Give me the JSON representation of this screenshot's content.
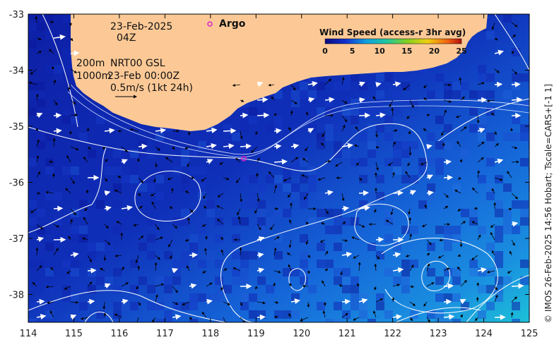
{
  "map": {
    "annotations": {
      "date": "23-Feb-2025",
      "hour": "04Z",
      "depth_200": "200m",
      "product": "NRT00 GSL",
      "depth_1000": "1000m",
      "datetime": "23-Feb 00:00Z",
      "scale_arrow": "0.5m/s (1kt 24h)"
    },
    "argo_label": "Argo",
    "legend": {
      "title": "Wind Speed (access-r 3hr avg)",
      "ticks": [
        "0",
        "5",
        "10",
        "15",
        "20",
        "25"
      ]
    },
    "x_ticks": [
      "114",
      "115",
      "116",
      "117",
      "118",
      "119",
      "120",
      "121",
      "122",
      "123",
      "124",
      "125"
    ],
    "y_ticks": [
      "-33",
      "-34",
      "-35",
      "-36",
      "-37",
      "-38"
    ],
    "credit": "© IMOS 26-Feb-2025 14:56 Hobart; Tscale=CARS+[-1 1]",
    "colors": {
      "land": "#fcc996",
      "deep": "#0d1ea8",
      "mid": "#1565d8",
      "shallow": "#1aa7d8",
      "argo": "#e020c8"
    }
  }
}
